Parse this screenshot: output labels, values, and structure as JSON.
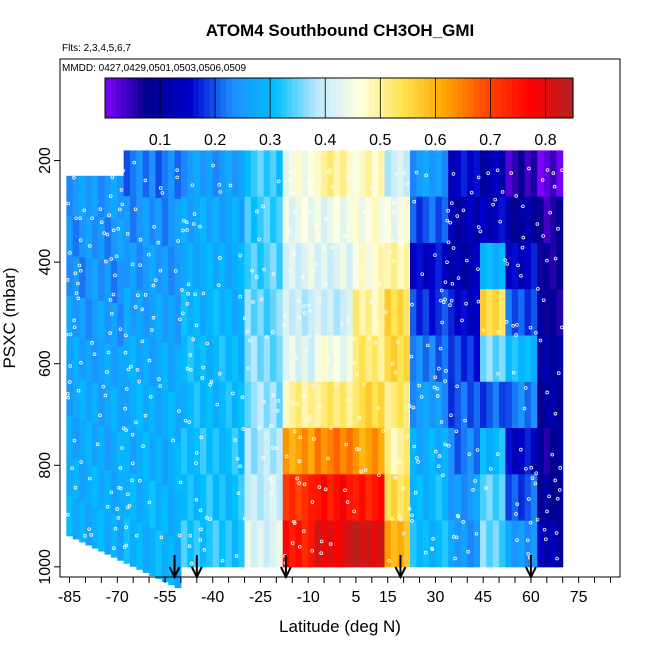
{
  "chart_data": {
    "type": "heatmap",
    "title": "ATOM4 Southbound CH3OH_GMI",
    "flights_note": "Flts: 2,3,4,5,6,7",
    "dates_note": "MMDD: 0427,0429,0501,0503,0506,0509",
    "xlabel": "Latitude (deg N)",
    "ylabel": "PSXC (mbar)",
    "xlim": [
      -88,
      88
    ],
    "ylim": [
      1020,
      0
    ],
    "x_ticks": [
      -85,
      -70,
      -55,
      -40,
      -25,
      -10,
      5,
      15,
      30,
      45,
      60,
      75
    ],
    "y_ticks": [
      200,
      400,
      600,
      800,
      1000
    ],
    "colorbar": {
      "min": 0.0,
      "max": 0.85,
      "ticks": [
        0.1,
        0.2,
        0.3,
        0.4,
        0.5,
        0.6,
        0.7,
        0.8
      ],
      "colors": [
        "#7f00ff",
        "#00008b",
        "#0000cd",
        "#1e90ff",
        "#00bfff",
        "#bfe9ff",
        "#ffffe0",
        "#ffe34d",
        "#ffa500",
        "#ff4500",
        "#ff0000",
        "#b22222"
      ]
    },
    "profiles": [
      {
        "lat": -52,
        "label": "arrow"
      },
      {
        "lat": -45,
        "label": "arrow"
      },
      {
        "lat": -17,
        "label": "arrow"
      },
      {
        "lat": 19,
        "label": "arrow"
      },
      {
        "lat": 60,
        "label": "arrow"
      }
    ],
    "bands": [
      {
        "x0": -86,
        "x1": -68,
        "p_top": 230,
        "values": [
          0.25,
          0.24,
          0.24,
          0.25,
          0.26,
          0.27,
          0.27,
          0.28,
          0.28
        ]
      },
      {
        "x0": -68,
        "x1": -50,
        "p_top": 180,
        "values": [
          0.22,
          0.24,
          0.25,
          0.26,
          0.27,
          0.28,
          0.28,
          0.29,
          0.29
        ]
      },
      {
        "x0": -50,
        "x1": -30,
        "p_top": 180,
        "values": [
          0.25,
          0.27,
          0.28,
          0.29,
          0.3,
          0.3,
          0.31,
          0.31,
          0.32
        ]
      },
      {
        "x0": -30,
        "x1": -18,
        "p_top": 180,
        "values": [
          0.33,
          0.33,
          0.34,
          0.35,
          0.36,
          0.37,
          0.38,
          0.4,
          0.42
        ]
      },
      {
        "x0": -18,
        "x1": -8,
        "p_top": 180,
        "values": [
          0.45,
          0.44,
          0.42,
          0.4,
          0.42,
          0.5,
          0.62,
          0.72,
          0.75
        ]
      },
      {
        "x0": -8,
        "x1": 4,
        "p_top": 180,
        "values": [
          0.5,
          0.44,
          0.42,
          0.4,
          0.45,
          0.52,
          0.65,
          0.76,
          0.8
        ]
      },
      {
        "x0": 4,
        "x1": 14,
        "p_top": 180,
        "values": [
          0.48,
          0.46,
          0.47,
          0.5,
          0.52,
          0.55,
          0.62,
          0.75,
          0.82
        ]
      },
      {
        "x0": 14,
        "x1": 22,
        "p_top": 180,
        "values": [
          0.4,
          0.45,
          0.5,
          0.55,
          0.55,
          0.52,
          0.5,
          0.55,
          0.6
        ]
      },
      {
        "x0": 22,
        "x1": 34,
        "p_top": 180,
        "values": [
          0.25,
          0.2,
          0.15,
          0.18,
          0.22,
          0.25,
          0.28,
          0.3,
          0.3
        ]
      },
      {
        "x0": 34,
        "x1": 44,
        "p_top": 180,
        "values": [
          0.15,
          0.12,
          0.12,
          0.15,
          0.18,
          0.2,
          0.22,
          0.25,
          0.25
        ]
      },
      {
        "x0": 44,
        "x1": 52,
        "p_top": 180,
        "values": [
          0.12,
          0.14,
          0.3,
          0.55,
          0.35,
          0.2,
          0.3,
          0.35,
          0.35
        ]
      },
      {
        "x0": 52,
        "x1": 62,
        "p_top": 180,
        "values": [
          0.05,
          0.1,
          0.15,
          0.2,
          0.3,
          0.22,
          0.15,
          0.2,
          0.25
        ]
      },
      {
        "x0": 62,
        "x1": 70,
        "p_top": 180,
        "values": [
          0.02,
          0.06,
          0.08,
          0.08,
          0.1,
          0.1,
          0.08,
          0.1,
          0.12
        ]
      }
    ]
  }
}
